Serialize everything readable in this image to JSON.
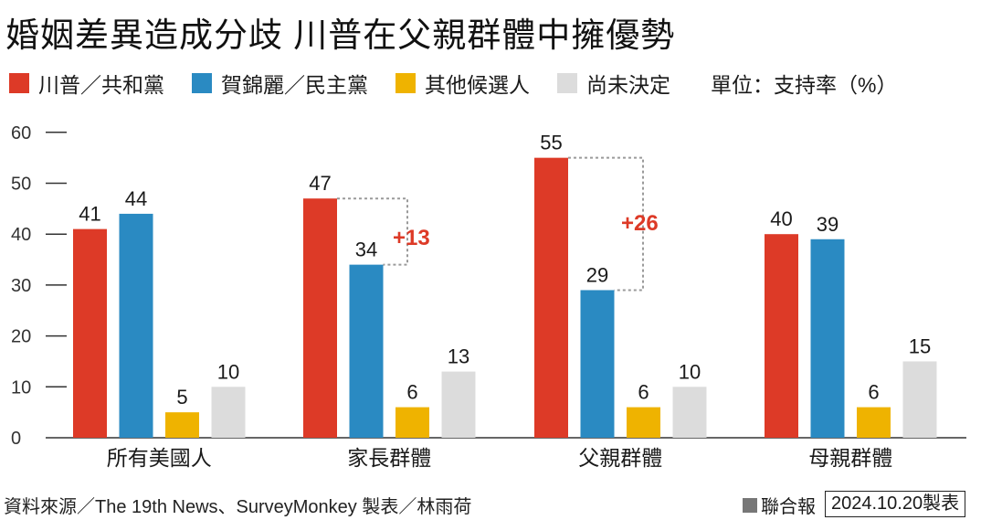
{
  "title": "婚姻差異造成分歧 川普在父親群體中擁優勢",
  "unit_label": "單位：支持率（%）",
  "source": "資料來源／The 19th News、SurveyMonkey 製表／林雨荷",
  "brand": "聯合報",
  "date": "2024.10.20製表",
  "chart_data": {
    "type": "bar",
    "categories": [
      "所有美國人",
      "家長群體",
      "父親群體",
      "母親群體"
    ],
    "series": [
      {
        "name": "川普／共和黨",
        "color": "#dd3a27",
        "values": [
          41,
          47,
          55,
          40
        ]
      },
      {
        "name": "賀錦麗／民主黨",
        "color": "#2a8ac2",
        "values": [
          44,
          34,
          29,
          39
        ]
      },
      {
        "name": "其他候選人",
        "color": "#efb300",
        "values": [
          5,
          6,
          6,
          6
        ]
      },
      {
        "name": "尚未決定",
        "color": "#dcdcdc",
        "values": [
          10,
          13,
          10,
          15
        ]
      }
    ],
    "ylim": [
      0,
      60
    ],
    "yticks": [
      0,
      10,
      20,
      30,
      40,
      50,
      60
    ],
    "annotations": [
      {
        "category": "家長群體",
        "text": "+13",
        "color": "#dd3a27"
      },
      {
        "category": "父親群體",
        "text": "+26",
        "color": "#dd3a27"
      }
    ],
    "grid": false
  }
}
